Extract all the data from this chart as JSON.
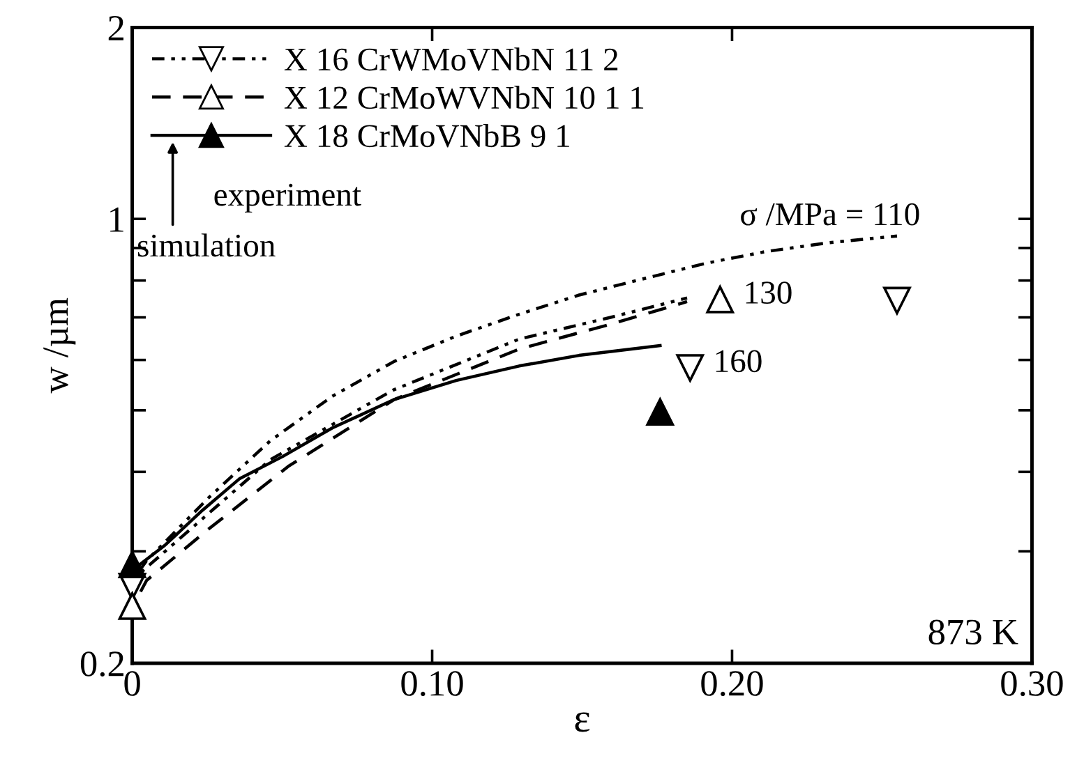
{
  "chart_data": {
    "type": "line",
    "xlabel": "ε",
    "ylabel": "w /µm",
    "log": "y",
    "xlim": [
      0,
      0.3
    ],
    "xticks": [
      0,
      {
        "value": 0.1,
        "label": "0.10"
      },
      {
        "value": 0.2,
        "label": "0.20"
      },
      {
        "value": 0.3,
        "label": "0.30"
      }
    ],
    "ylim": [
      0.2,
      2
    ],
    "yticks": [
      {
        "value": 0.2,
        "label": "0.2"
      },
      {
        "value": 0.3,
        "label": null
      },
      {
        "value": 0.4,
        "label": null
      },
      {
        "value": 0.5,
        "label": null
      },
      {
        "value": 0.6,
        "label": null
      },
      {
        "value": 0.7,
        "label": null
      },
      {
        "value": 0.8,
        "label": null
      },
      {
        "value": 0.9,
        "label": null
      },
      1,
      2
    ],
    "grid": false,
    "legend": "top left",
    "series": [
      {
        "name": "X 16 CrWMoVNbN 11 2",
        "line_style": "dashdotdot",
        "color": "#000000",
        "x": [
          0,
          0.0048,
          0.0254,
          0.0461,
          0.0667,
          0.0874,
          0.108,
          0.129,
          0.149,
          0.17,
          0.191,
          0.211,
          0.232,
          0.255
        ],
        "values": [
          0.27,
          0.29,
          0.364,
          0.448,
          0.526,
          0.597,
          0.654,
          0.708,
          0.759,
          0.804,
          0.851,
          0.888,
          0.917,
          0.94
        ]
      },
      {
        "line_style": "dashdotdot",
        "color": "#000000",
        "x": [
          0,
          0.0048,
          0.046,
          0.087,
          0.129,
          0.16,
          0.185
        ],
        "values": [
          0.27,
          0.283,
          0.418,
          0.538,
          0.647,
          0.701,
          0.751
        ]
      },
      {
        "name": "X 12 CrMoWVNbN 10 1 1",
        "line_style": "dashed",
        "color": "#000000",
        "x": [
          0,
          0.0048,
          0.0254,
          0.052,
          0.0874,
          0.129,
          0.16,
          0.185
        ],
        "values": [
          0.245,
          0.27,
          0.325,
          0.408,
          0.52,
          0.624,
          0.684,
          0.741
        ]
      },
      {
        "name": "X 18 CrMoVNbB 9 1",
        "line_style": "solid",
        "color": "#000000",
        "x": [
          0,
          0.011,
          0.0234,
          0.0357,
          0.0502,
          0.0667,
          0.0874,
          0.108,
          0.129,
          0.149,
          0.176
        ],
        "values": [
          0.28,
          0.307,
          0.348,
          0.39,
          0.423,
          0.469,
          0.52,
          0.557,
          0.587,
          0.61,
          0.632
        ]
      },
      {
        "type": "scatter",
        "marker": "triangle_down",
        "color": "#ffffff",
        "x": [
          0,
          0.186,
          0.255
        ],
        "values": [
          0.264,
          0.583,
          0.744
        ]
      },
      {
        "type": "scatter",
        "marker": "triangle",
        "color": "#ffffff",
        "x": [
          0,
          0.196
        ],
        "values": [
          0.246,
          0.747
        ]
      },
      {
        "type": "scatter",
        "marker": "triangle",
        "color": "#000000",
        "x": [
          0,
          0.176
        ],
        "values": [
          0.286,
          0.497
        ]
      }
    ],
    "annotations": [
      {
        "text": "σ /MPa = 110",
        "x": 0.255,
        "y": 0.94
      },
      {
        "text": "130",
        "x": 0.196,
        "y": 0.747
      },
      {
        "text": "160",
        "x": 0.186,
        "y": 0.583
      },
      "experiment",
      "simulation",
      "873 K"
    ]
  }
}
